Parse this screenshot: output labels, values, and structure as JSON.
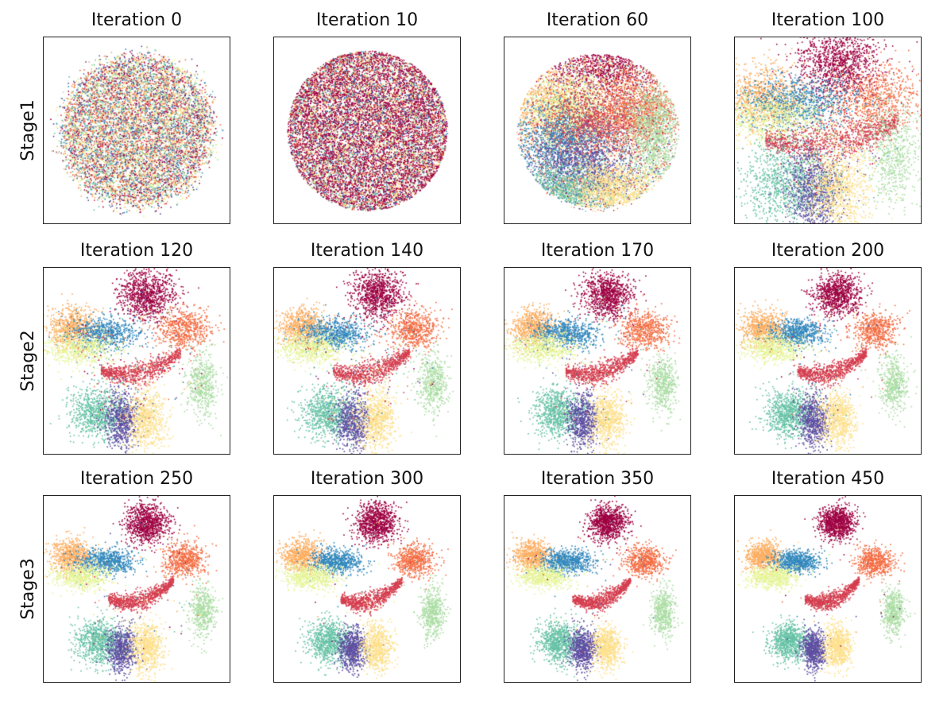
{
  "figure": {
    "row_labels": [
      "Stage1",
      "Stage2",
      "Stage3"
    ],
    "panel_titles": [
      "Iteration 0",
      "Iteration 10",
      "Iteration 60",
      "Iteration 100",
      "Iteration 120",
      "Iteration 140",
      "Iteration 170",
      "Iteration 200",
      "Iteration 250",
      "Iteration 300",
      "Iteration 350",
      "Iteration 450"
    ]
  },
  "chart_data": {
    "type": "scatter",
    "description": "Grid of 2-D embedding scatter plots showing cluster formation across training iterations",
    "grid": false,
    "ticks": false,
    "palette": [
      "#9e0142",
      "#f46d43",
      "#fdae61",
      "#3288bd",
      "#e6f598",
      "#d53e4f",
      "#abdda4",
      "#66c2a5",
      "#5e4fa2",
      "#fee08b"
    ],
    "panels": [
      {
        "iteration": 0,
        "stage": "Stage1",
        "layout": "uniform-disc"
      },
      {
        "iteration": 10,
        "stage": "Stage1",
        "layout": "dense-disc"
      },
      {
        "iteration": 60,
        "stage": "Stage1",
        "layout": "early-clusters"
      },
      {
        "iteration": 100,
        "stage": "Stage1",
        "layout": "forming-clusters"
      },
      {
        "iteration": 120,
        "stage": "Stage2",
        "layout": "clusters"
      },
      {
        "iteration": 140,
        "stage": "Stage2",
        "layout": "clusters"
      },
      {
        "iteration": 170,
        "stage": "Stage2",
        "layout": "clusters"
      },
      {
        "iteration": 200,
        "stage": "Stage2",
        "layout": "clusters"
      },
      {
        "iteration": 250,
        "stage": "Stage3",
        "layout": "clusters"
      },
      {
        "iteration": 300,
        "stage": "Stage3",
        "layout": "clusters"
      },
      {
        "iteration": 350,
        "stage": "Stage3",
        "layout": "clusters"
      },
      {
        "iteration": 450,
        "stage": "Stage3",
        "layout": "clusters"
      }
    ]
  }
}
